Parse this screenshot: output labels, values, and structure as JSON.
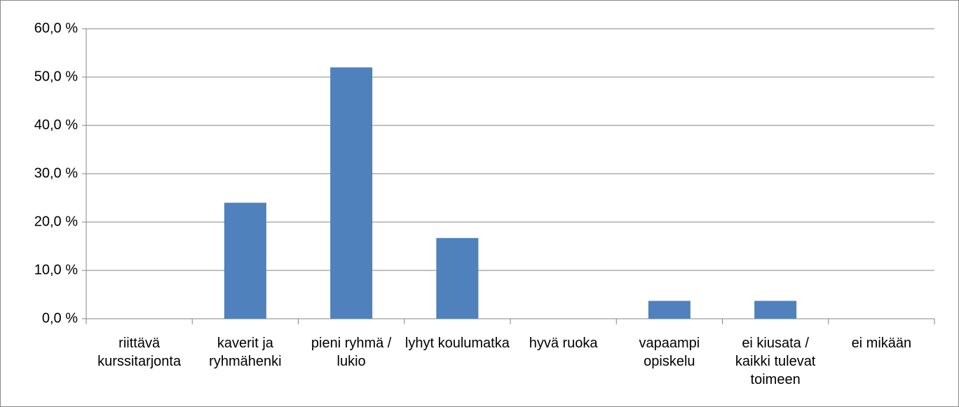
{
  "chart_data": {
    "type": "bar",
    "categories": [
      "riittävä kurssitarjonta",
      "kaverit ja ryhmähenki",
      "pieni ryhmä / lukio",
      "lyhyt koulumatka",
      "hyvä ruoka",
      "vapaampi opiskelu",
      "ei kiusata / kaikki tulevat toimeen",
      "ei mikään"
    ],
    "values": [
      0,
      24.0,
      52.0,
      16.7,
      0,
      3.7,
      3.7,
      0
    ],
    "color": "#4f81bd",
    "ylim": [
      0,
      60
    ],
    "yticks": [
      {
        "value": 0,
        "label": "0,0 %"
      },
      {
        "value": 10,
        "label": "10,0 %"
      },
      {
        "value": 20,
        "label": "20,0 %"
      },
      {
        "value": 30,
        "label": "30,0 %"
      },
      {
        "value": 40,
        "label": "40,0 %"
      },
      {
        "value": 50,
        "label": "50,0 %"
      },
      {
        "value": 60,
        "label": "60,0 %"
      }
    ],
    "grid": true
  }
}
